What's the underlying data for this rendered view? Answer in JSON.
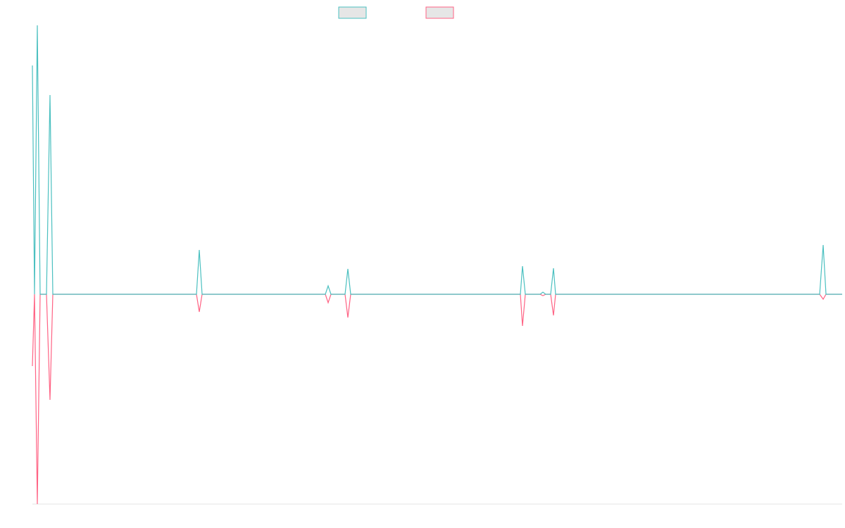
{
  "chart_data": {
    "type": "line",
    "title": "",
    "xlabel": "",
    "ylabel": "",
    "legend_position": "top-center",
    "grid": false,
    "xlim": [
      0,
      160
    ],
    "ylim": [
      -1,
      1.3
    ],
    "x": [
      0,
      1,
      2,
      3,
      4,
      5,
      6,
      7,
      8,
      9,
      10,
      11,
      12,
      13,
      14,
      15,
      16,
      17,
      18,
      19,
      20,
      21,
      22,
      23,
      24,
      25,
      26,
      27,
      28,
      29,
      30,
      31,
      32,
      33,
      34,
      35,
      36,
      37,
      38,
      39,
      40,
      41,
      42,
      43,
      44,
      45,
      46,
      47,
      48,
      49,
      50,
      51,
      52,
      53,
      54,
      55,
      56,
      57,
      58,
      59,
      60,
      61,
      62,
      63,
      64,
      65,
      66,
      67,
      68,
      69,
      70,
      71,
      72,
      73,
      74,
      75,
      76,
      77,
      78,
      79,
      80,
      81,
      82,
      83,
      84,
      85,
      86,
      87,
      88,
      89,
      90,
      91,
      92,
      93,
      94,
      95,
      96,
      97,
      98,
      99,
      100,
      101,
      102,
      103,
      104,
      105,
      106,
      107,
      108,
      109,
      110,
      111,
      112,
      113,
      114,
      115,
      116,
      117,
      118,
      119,
      120,
      121,
      122,
      123,
      124,
      125,
      126,
      127,
      128,
      129,
      130,
      131,
      132,
      133,
      134,
      135,
      136,
      137,
      138,
      139,
      140,
      141,
      142,
      143,
      144,
      145,
      146,
      147,
      148,
      149,
      150,
      151,
      152,
      153,
      154,
      155,
      156,
      157,
      158,
      159,
      160
    ],
    "series": [
      {
        "color": "#4bc0c0",
        "values": [
          0,
          1.0,
          0.0,
          0.0,
          0.0,
          0.0,
          0.0,
          0.0,
          0.0,
          0.0,
          0.0,
          0.0,
          0.0,
          0.0,
          0.0,
          0.0,
          0.0,
          0.0,
          0.0,
          0.0,
          0.0,
          0.0,
          0.0,
          0.0,
          0.0,
          0.0,
          0.0,
          0.0,
          0.0,
          0.0,
          0.0,
          0.0,
          0.0,
          0.0,
          0.0,
          0.0,
          0.0,
          0.0,
          0.0,
          0.0,
          0.0,
          0.0,
          0.0,
          0.0,
          0.0,
          0.0,
          0.0,
          0.0,
          0.0,
          0.0,
          0.0,
          0.0,
          0.0,
          0.0,
          0.0,
          0.0,
          0.0,
          0.0,
          0.0,
          0.0,
          0.0,
          0.0,
          0.0,
          0.0,
          0.0,
          0.0,
          0.0,
          0.0,
          0.0,
          0.0,
          0.0,
          0.0,
          0.0,
          0.0,
          0.0,
          0.0,
          0.0,
          0.0,
          0.0,
          0.0,
          0.0,
          0.0,
          0.0,
          0.0,
          0.0,
          0.0,
          0.0,
          0.0,
          0.0,
          0.0,
          0.0,
          0.0,
          0.0,
          0.0,
          0.0,
          0.0,
          0.0,
          0.0,
          0.0,
          0.0,
          0.0,
          0.0,
          0.0,
          0.0,
          0.0,
          0.0,
          0.0,
          0.0,
          0.0,
          0.0,
          0.0,
          0.0,
          0.0,
          0.0,
          0.0,
          0.0,
          0.0,
          0.0,
          0.0,
          0.0,
          0.0,
          0.0,
          0.0,
          0.0,
          0.0,
          0.0,
          0.0,
          0.0,
          0.0,
          0.0,
          0.0,
          0.0,
          0.0,
          0.0,
          0.0,
          0.0,
          0.0,
          0.0,
          0.0,
          0.0,
          0.0,
          0.0,
          0.0,
          0.0,
          0.0,
          0.0,
          0.0,
          0.0,
          0.0,
          0.0,
          0.0,
          0.0,
          0.0,
          0.0,
          0.0,
          0.0,
          0.0,
          0.0,
          0.0,
          0.0,
          0.0
        ]
      }
    ]
  }
}
